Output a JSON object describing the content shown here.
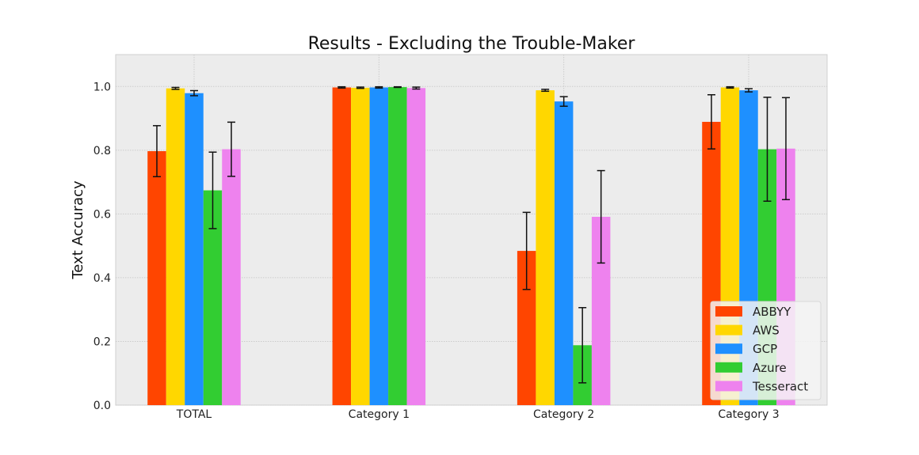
{
  "chart_data": {
    "type": "bar",
    "title": "Results - Excluding the Trouble-Maker",
    "xlabel": "",
    "ylabel": "Text Accuracy",
    "ylim": [
      0,
      1.1
    ],
    "yticks": [
      0.0,
      0.2,
      0.4,
      0.6,
      0.8,
      1.0
    ],
    "ytick_labels": [
      "0.0",
      "0.2",
      "0.4",
      "0.6",
      "0.8",
      "1.0"
    ],
    "categories": [
      "TOTAL",
      "Category 1",
      "Category 2",
      "Category 3"
    ],
    "grid": true,
    "legend_position": "bottom-right",
    "series": [
      {
        "name": "ABBYY",
        "color": "#ff4500",
        "values": [
          0.797,
          0.997,
          0.484,
          0.889
        ],
        "errors": [
          0.08,
          0.002,
          0.121,
          0.085
        ]
      },
      {
        "name": "AWS",
        "color": "#ffd700",
        "values": [
          0.994,
          0.996,
          0.988,
          0.997
        ],
        "errors": [
          0.003,
          0.002,
          0.003,
          0.002
        ]
      },
      {
        "name": "GCP",
        "color": "#1e90ff",
        "values": [
          0.979,
          0.997,
          0.953,
          0.988
        ],
        "errors": [
          0.008,
          0.002,
          0.015,
          0.005
        ]
      },
      {
        "name": "Azure",
        "color": "#32cd32",
        "values": [
          0.674,
          0.998,
          0.188,
          0.803
        ],
        "errors": [
          0.12,
          0.001,
          0.118,
          0.163
        ]
      },
      {
        "name": "Tesseract",
        "color": "#ee82ee",
        "values": [
          0.803,
          0.995,
          0.591,
          0.805
        ],
        "errors": [
          0.085,
          0.003,
          0.145,
          0.16
        ]
      }
    ]
  }
}
